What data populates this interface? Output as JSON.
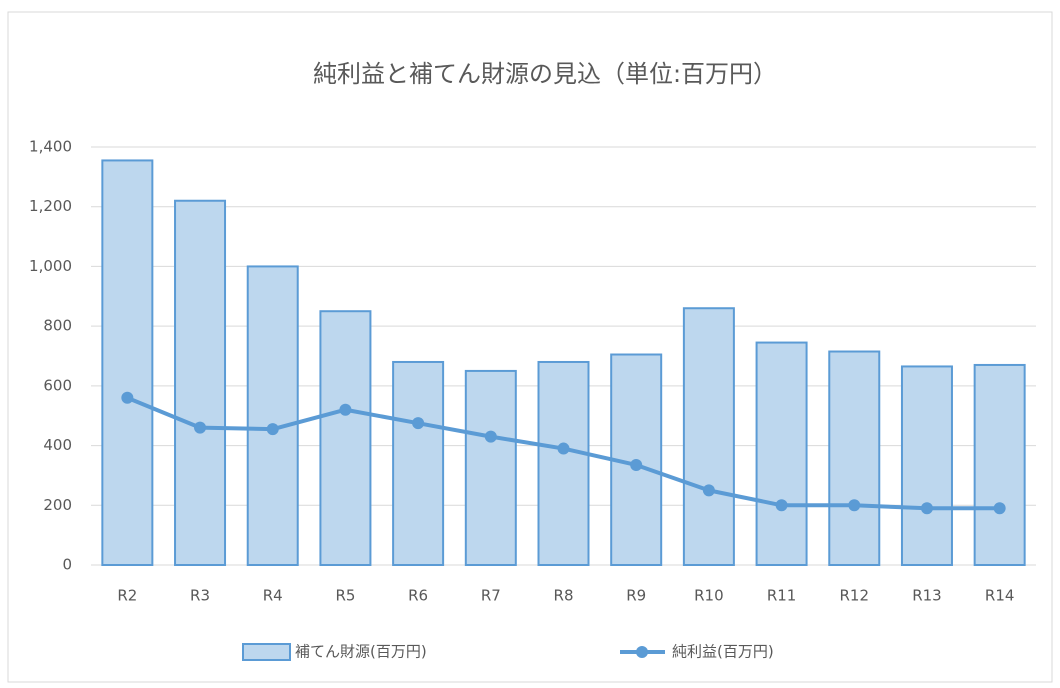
{
  "chart_data": {
    "type": "bar-line",
    "title": "純利益と補てん財源の見込（単位:百万円）",
    "categories": [
      "R2",
      "R3",
      "R4",
      "R5",
      "R6",
      "R7",
      "R8",
      "R9",
      "R10",
      "R11",
      "R12",
      "R13",
      "R14"
    ],
    "series": [
      {
        "name": "補てん財源(百万円)",
        "type": "bar",
        "color": "#bdd7ee",
        "stroke": "#5b9bd5",
        "values": [
          1355,
          1220,
          1000,
          850,
          680,
          650,
          680,
          705,
          860,
          745,
          715,
          665,
          670
        ]
      },
      {
        "name": "純利益(百万円)",
        "type": "line",
        "color": "#5b9bd5",
        "values": [
          560,
          460,
          455,
          520,
          475,
          430,
          390,
          335,
          250,
          200,
          200,
          190,
          190
        ]
      }
    ],
    "ylim": [
      0,
      1400
    ],
    "yticks": [
      0,
      200,
      400,
      600,
      800,
      {
        "value": 1000,
        "label": "1,000"
      },
      {
        "value": 1200,
        "label": "1,200"
      },
      {
        "value": 1400,
        "label": "1,400"
      }
    ],
    "grid": true,
    "legend": "bottom"
  }
}
